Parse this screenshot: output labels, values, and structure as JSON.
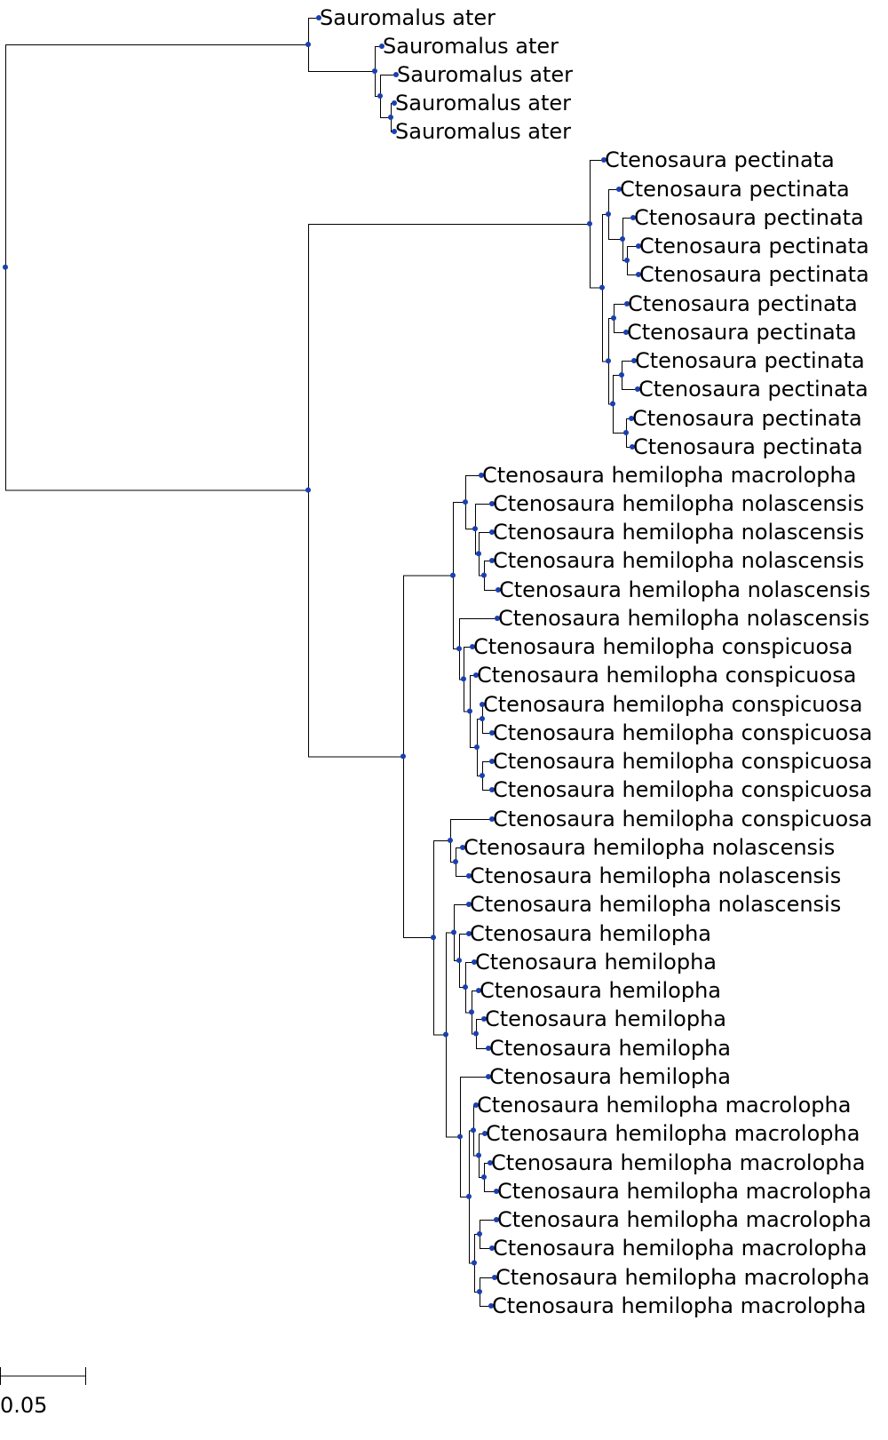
{
  "tree": {
    "node_color": "#1a3fb0",
    "line_color": "#000000",
    "scale_bar": {
      "value": 0.05,
      "label": "0.05"
    },
    "leaves": [
      "Sauromalus ater",
      "Sauromalus ater",
      "Sauromalus ater",
      "Sauromalus ater",
      "Sauromalus ater",
      "Ctenosaura pectinata",
      "Ctenosaura pectinata",
      "Ctenosaura pectinata",
      "Ctenosaura pectinata",
      "Ctenosaura pectinata",
      "Ctenosaura pectinata",
      "Ctenosaura pectinata",
      "Ctenosaura pectinata",
      "Ctenosaura pectinata",
      "Ctenosaura pectinata",
      "Ctenosaura pectinata",
      "Ctenosaura hemilopha macrolopha",
      "Ctenosaura hemilopha nolascensis",
      "Ctenosaura hemilopha nolascensis",
      "Ctenosaura hemilopha nolascensis",
      "Ctenosaura hemilopha nolascensis",
      "Ctenosaura hemilopha nolascensis",
      "Ctenosaura hemilopha conspicuosa",
      "Ctenosaura hemilopha conspicuosa",
      "Ctenosaura hemilopha conspicuosa",
      "Ctenosaura hemilopha conspicuosa",
      "Ctenosaura hemilopha conspicuosa",
      "Ctenosaura hemilopha conspicuosa",
      "Ctenosaura hemilopha conspicuosa",
      "Ctenosaura hemilopha nolascensis",
      "Ctenosaura hemilopha nolascensis",
      "Ctenosaura hemilopha nolascensis",
      "Ctenosaura hemilopha",
      "Ctenosaura hemilopha",
      "Ctenosaura hemilopha",
      "Ctenosaura hemilopha",
      "Ctenosaura hemilopha",
      "Ctenosaura hemilopha",
      "Ctenosaura hemilopha macrolopha",
      "Ctenosaura hemilopha macrolopha",
      "Ctenosaura hemilopha macrolopha",
      "Ctenosaura hemilopha macrolopha",
      "Ctenosaura hemilopha macrolopha",
      "Ctenosaura hemilopha macrolopha",
      "Ctenosaura hemilopha macrolopha",
      "Ctenosaura hemilopha macrolopha",
      "Ctenosaura hemilopha macrolopha"
    ]
  }
}
